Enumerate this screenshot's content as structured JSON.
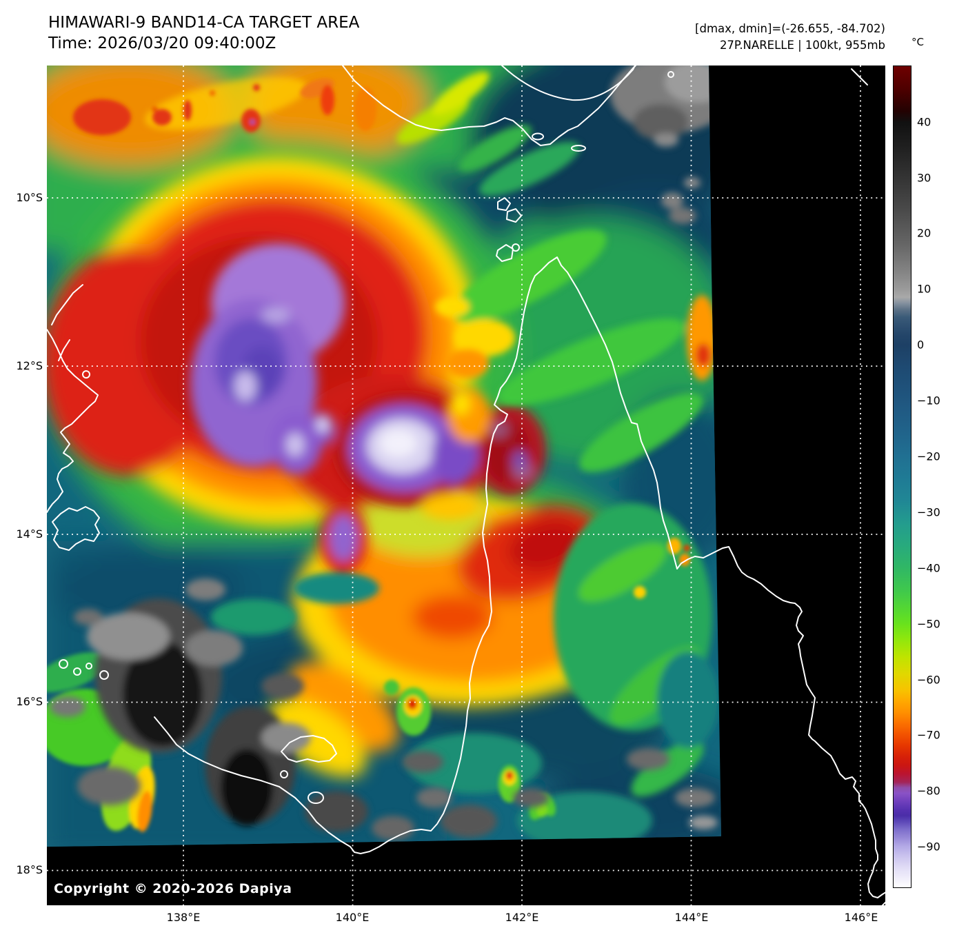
{
  "header": {
    "title": "HIMAWARI-9 BAND14-CA TARGET AREA",
    "time": "Time: 2026/03/20 09:40:00Z"
  },
  "annotation": {
    "range": "[dmax, dmin]=(-26.655, -84.702)",
    "storm": "27P.NARELLE | 100kt, 955mb"
  },
  "axes": {
    "lon": [
      "138°E",
      "140°E",
      "142°E",
      "144°E",
      "146°E"
    ],
    "lat": [
      "10°S",
      "12°S",
      "14°S",
      "16°S",
      "18°S"
    ]
  },
  "colorbar": {
    "unit": "°C",
    "value_max": 50.1,
    "value_min": -97.4,
    "ticks": [
      {
        "value": 40,
        "label": "40"
      },
      {
        "value": 30,
        "label": "30"
      },
      {
        "value": 20,
        "label": "20"
      },
      {
        "value": 10,
        "label": "10"
      },
      {
        "value": 0,
        "label": "0"
      },
      {
        "value": -10,
        "label": "−10"
      },
      {
        "value": -20,
        "label": "−20"
      },
      {
        "value": -30,
        "label": "−30"
      },
      {
        "value": -40,
        "label": "−40"
      },
      {
        "value": -50,
        "label": "−50"
      },
      {
        "value": -60,
        "label": "−60"
      },
      {
        "value": -70,
        "label": "−70"
      },
      {
        "value": -80,
        "label": "−80"
      },
      {
        "value": -90,
        "label": "−90"
      }
    ],
    "stops": [
      [
        50.1,
        "#6f0000"
      ],
      [
        46,
        "#4e0000"
      ],
      [
        42,
        "#230202"
      ],
      [
        40,
        "#111111"
      ],
      [
        36,
        "#1e1e1e"
      ],
      [
        30,
        "#343434"
      ],
      [
        24,
        "#4b4b4b"
      ],
      [
        18,
        "#666666"
      ],
      [
        13,
        "#858585"
      ],
      [
        10,
        "#9b9b9b"
      ],
      [
        8.6,
        "#a9a9a9"
      ],
      [
        7.6,
        "#8793a0"
      ],
      [
        6.4,
        "#5d7287"
      ],
      [
        5,
        "#3a5a78"
      ],
      [
        2,
        "#24466a"
      ],
      [
        0,
        "#1d4065"
      ],
      [
        -4,
        "#1e4a72"
      ],
      [
        -8,
        "#1f527b"
      ],
      [
        -12,
        "#205b84"
      ],
      [
        -16,
        "#20648b"
      ],
      [
        -20,
        "#207092"
      ],
      [
        -24,
        "#1f7b95"
      ],
      [
        -28,
        "#208795"
      ],
      [
        -32,
        "#239c8e"
      ],
      [
        -36,
        "#28aa7d"
      ],
      [
        -40,
        "#30b765"
      ],
      [
        -44,
        "#3fc84d"
      ],
      [
        -48,
        "#58da2e"
      ],
      [
        -50,
        "#68e21d"
      ],
      [
        -53,
        "#92e70c"
      ],
      [
        -56,
        "#bfe400"
      ],
      [
        -59,
        "#e0d800"
      ],
      [
        -62,
        "#f7c300"
      ],
      [
        -64,
        "#ffa800"
      ],
      [
        -66,
        "#ff9000"
      ],
      [
        -68,
        "#fb7000"
      ],
      [
        -70,
        "#f25200"
      ],
      [
        -72,
        "#e63600"
      ],
      [
        -74,
        "#d62008"
      ],
      [
        -75.5,
        "#cb1612"
      ],
      [
        -77,
        "#bb1430"
      ],
      [
        -78.5,
        "#a32458"
      ],
      [
        -79.5,
        "#8f4daa"
      ],
      [
        -80.5,
        "#8a52c6"
      ],
      [
        -82,
        "#6f3fbc"
      ],
      [
        -83.5,
        "#5531b0"
      ],
      [
        -84.5,
        "#4b2da8"
      ],
      [
        -85.5,
        "#5b46b6"
      ],
      [
        -87,
        "#7d6ecb"
      ],
      [
        -88.5,
        "#988ad8"
      ],
      [
        -90,
        "#b3a9e6"
      ],
      [
        -92,
        "#cdc6ef"
      ],
      [
        -94,
        "#e2def6"
      ],
      [
        -96,
        "#f2f0fb"
      ],
      [
        -97.4,
        "#ffffff"
      ]
    ]
  },
  "copyright": "Copyright © 2020-2026 Dapiya",
  "colors": {
    "plot_background": "#000000",
    "coastline": "#ffffff",
    "grid": "#ffffff"
  }
}
